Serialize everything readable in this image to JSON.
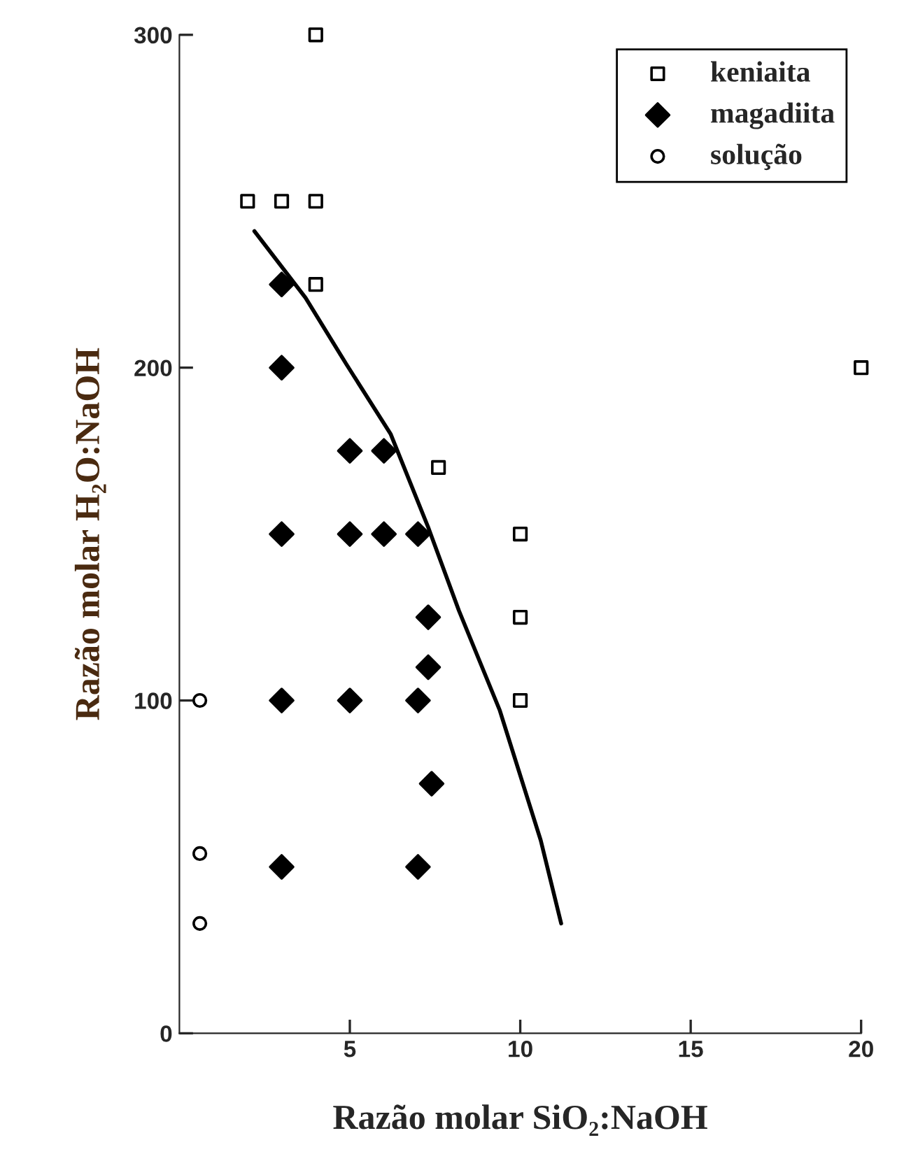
{
  "chart_data": {
    "type": "scatter",
    "xlabel": "Razão molar SiO₂:NaOH",
    "ylabel": "Razão molar H₂O:NaOH",
    "xlim": [
      0,
      20
    ],
    "ylim": [
      0,
      300
    ],
    "xticks": [
      5,
      10,
      15,
      20
    ],
    "yticks": [
      0,
      100,
      200,
      300
    ],
    "grid": false,
    "legend": "top right",
    "series": [
      {
        "name": "keniaita",
        "color": "#000000",
        "marker": "square",
        "x": [
          2,
          3,
          4,
          4,
          4,
          7.6,
          10,
          10,
          10,
          20
        ],
        "values": [
          250,
          250,
          250,
          300,
          225,
          170,
          150,
          125,
          100,
          200
        ]
      },
      {
        "name": "magadiita",
        "color": "#000000",
        "marker": "diamond",
        "x": [
          3,
          3,
          5,
          6,
          3,
          5,
          6,
          7,
          7.3,
          7.3,
          3,
          5,
          7,
          7.4,
          3,
          7
        ],
        "values": [
          225,
          200,
          175,
          175,
          150,
          150,
          150,
          150,
          125,
          110,
          100,
          100,
          100,
          75,
          50,
          50
        ]
      },
      {
        "name": "solução",
        "color": "#000000",
        "marker": "circle",
        "x": [
          0.6,
          0.6,
          0.6
        ],
        "values": [
          100,
          54,
          33
        ]
      },
      {
        "type": "line",
        "color": "#000000",
        "marker": "none",
        "x": [
          2.2,
          3.7,
          4.9,
          6.2,
          7.3,
          8.2,
          9.4,
          10.6,
          11.2
        ],
        "values": [
          241,
          221,
          201,
          180,
          152,
          127,
          97,
          58,
          33
        ]
      }
    ]
  }
}
